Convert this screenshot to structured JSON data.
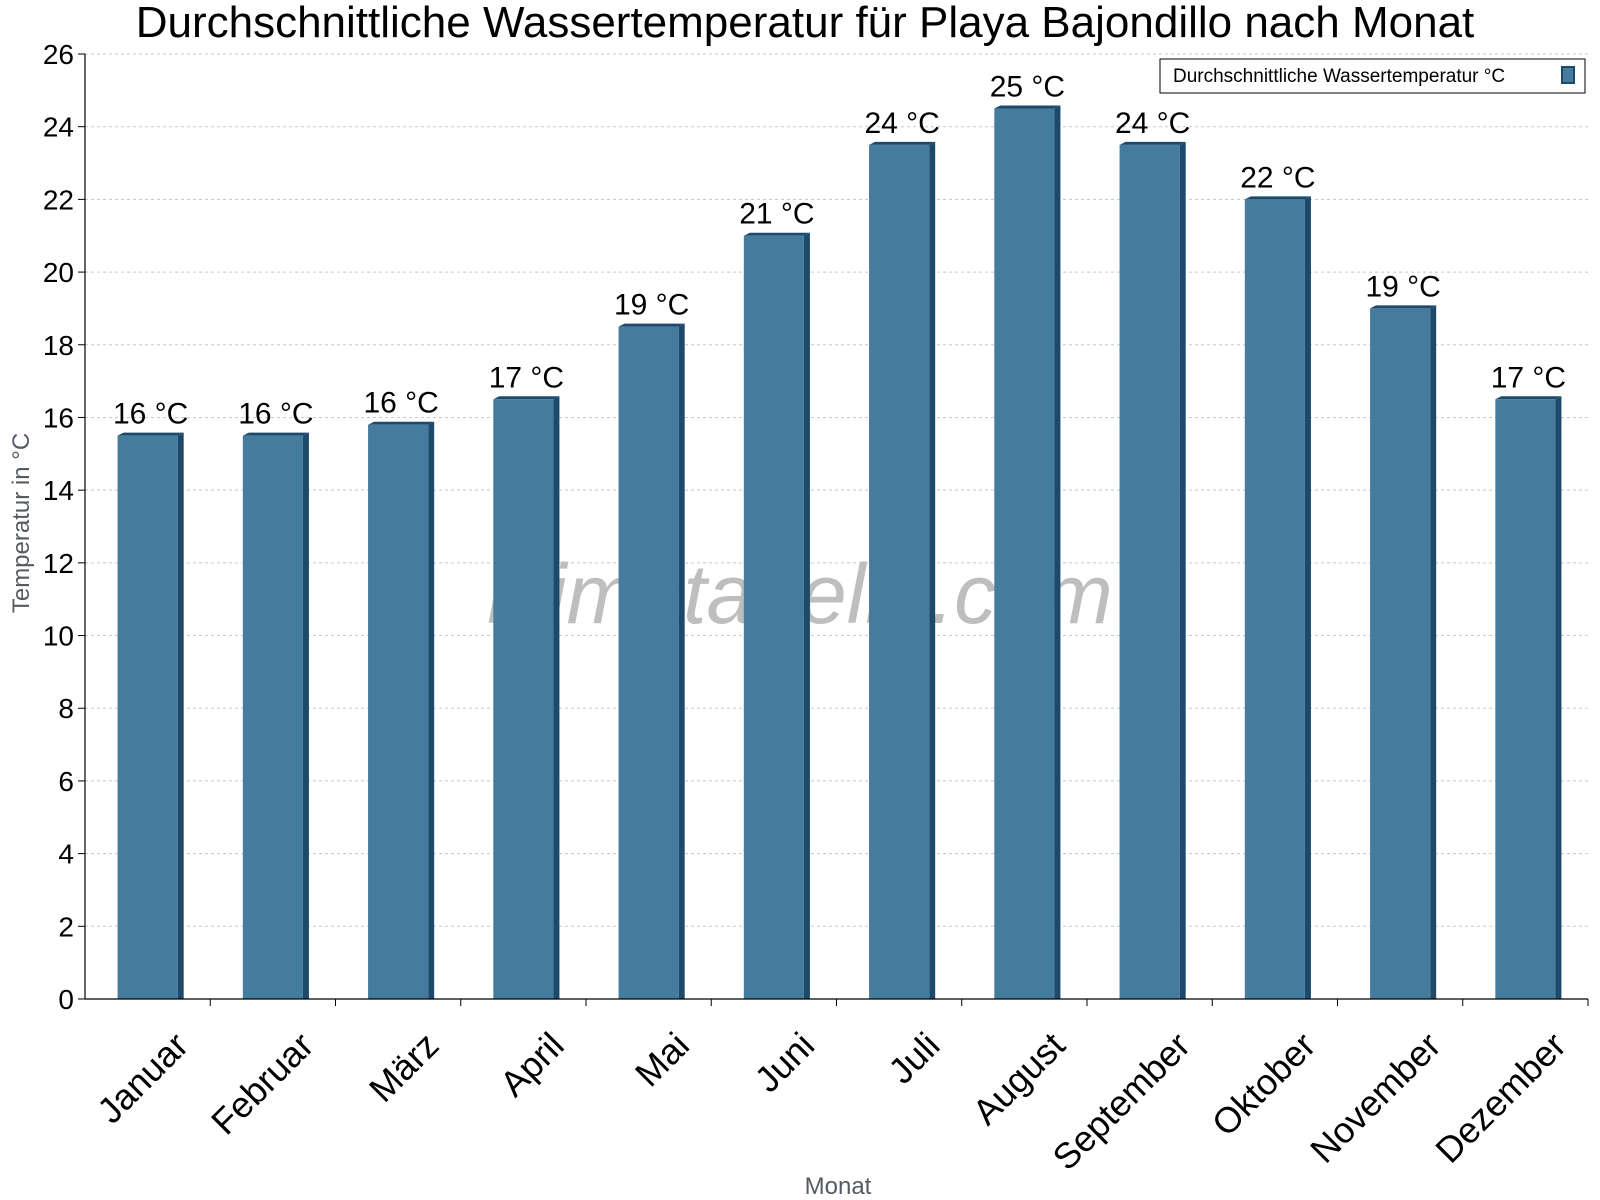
{
  "chart_data": {
    "type": "bar",
    "title": "Durchschnittliche Wassertemperatur für Playa Bajondillo nach Monat",
    "xlabel": "Monat",
    "ylabel": "Temperatur in °C",
    "categories": [
      "Januar",
      "Februar",
      "März",
      "April",
      "Mai",
      "Juni",
      "Juli",
      "August",
      "September",
      "Oktober",
      "November",
      "Dezember"
    ],
    "series": [
      {
        "name": "Durchschnittliche Wassertemperatur °C",
        "values": [
          15.5,
          15.5,
          15.8,
          16.5,
          18.5,
          21.0,
          23.5,
          24.5,
          23.5,
          22.0,
          19.0,
          16.5
        ],
        "labels": [
          "16 °C",
          "16 °C",
          "16 °C",
          "17 °C",
          "19 °C",
          "21 °C",
          "24 °C",
          "25 °C",
          "24 °C",
          "22 °C",
          "19 °C",
          "17 °C"
        ],
        "color": "#457b9d"
      }
    ],
    "ylim": [
      0,
      26
    ],
    "yticks": [
      0,
      2,
      4,
      6,
      8,
      10,
      12,
      14,
      16,
      18,
      20,
      22,
      24,
      26
    ],
    "grid": true,
    "legend_position": "top-right",
    "watermark": "klimatabelle.com"
  }
}
